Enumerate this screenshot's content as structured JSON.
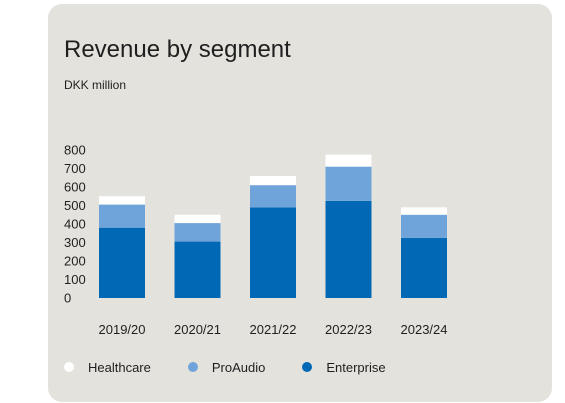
{
  "chart_data": {
    "type": "bar",
    "stacked": true,
    "title": "Revenue by segment",
    "subtitle": "DKK million",
    "categories": [
      "2019/20",
      "2020/21",
      "2021/22",
      "2022/23",
      "2023/24"
    ],
    "series": [
      {
        "name": "Enterprise",
        "color": "#0068b5",
        "values": [
          380,
          305,
          490,
          525,
          325
        ]
      },
      {
        "name": "ProAudio",
        "color": "#6fa4da",
        "values": [
          125,
          100,
          120,
          185,
          125
        ]
      },
      {
        "name": "Healthcare",
        "color": "#ffffff",
        "values": [
          45,
          45,
          50,
          65,
          40
        ]
      }
    ],
    "ylim": [
      0,
      800
    ],
    "yticks": [
      0,
      100,
      200,
      300,
      400,
      500,
      600,
      700,
      800
    ],
    "legend_order": [
      "Healthcare",
      "ProAudio",
      "Enterprise"
    ],
    "legend_position": "bottom-left",
    "grid": false
  }
}
